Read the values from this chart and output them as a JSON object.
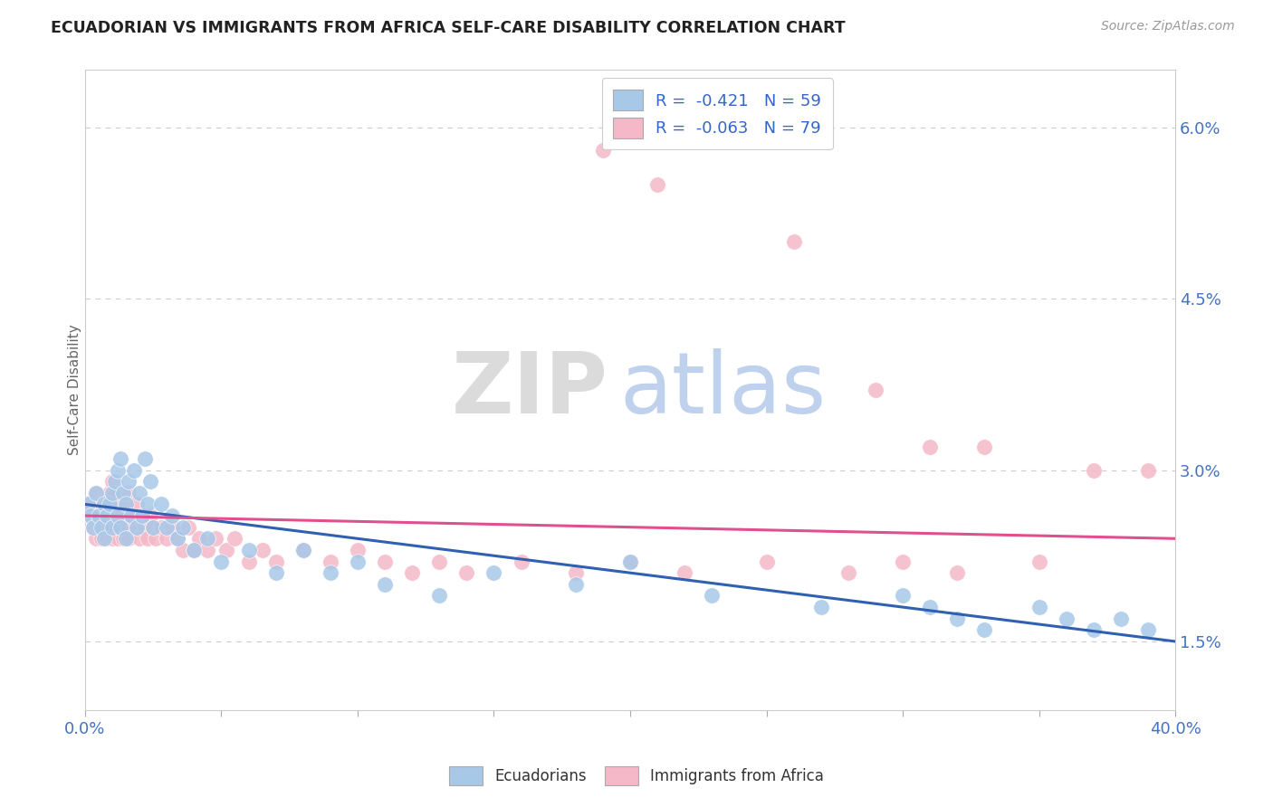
{
  "title": "ECUADORIAN VS IMMIGRANTS FROM AFRICA SELF-CARE DISABILITY CORRELATION CHART",
  "source": "Source: ZipAtlas.com",
  "ylabel": "Self-Care Disability",
  "xlim": [
    0.0,
    0.4
  ],
  "ylim": [
    0.009,
    0.065
  ],
  "ytick_vals": [
    0.015,
    0.03,
    0.045,
    0.06
  ],
  "ytick_labels": [
    "1.5%",
    "3.0%",
    "4.5%",
    "6.0%"
  ],
  "xtick_vals": [
    0.0,
    0.05,
    0.1,
    0.15,
    0.2,
    0.25,
    0.3,
    0.35,
    0.4
  ],
  "xtick_labels": [
    "0.0%",
    "",
    "",
    "",
    "",
    "",
    "",
    "",
    "40.0%"
  ],
  "blue_R": -0.421,
  "blue_N": 59,
  "pink_R": -0.063,
  "pink_N": 79,
  "blue_color": "#a8c8e8",
  "pink_color": "#f4b8c8",
  "blue_line_color": "#3060b0",
  "pink_line_color": "#e05090",
  "background_color": "#ffffff",
  "watermark_zip": "ZIP",
  "watermark_atlas": "atlas",
  "blue_line_start_y": 0.027,
  "blue_line_end_y": 0.015,
  "pink_line_start_y": 0.026,
  "pink_line_end_y": 0.024,
  "blue_x": [
    0.001,
    0.002,
    0.003,
    0.004,
    0.005,
    0.006,
    0.007,
    0.007,
    0.008,
    0.009,
    0.01,
    0.01,
    0.011,
    0.012,
    0.012,
    0.013,
    0.013,
    0.014,
    0.015,
    0.015,
    0.016,
    0.017,
    0.018,
    0.019,
    0.02,
    0.021,
    0.022,
    0.023,
    0.024,
    0.025,
    0.028,
    0.03,
    0.032,
    0.034,
    0.036,
    0.04,
    0.045,
    0.05,
    0.06,
    0.07,
    0.08,
    0.09,
    0.1,
    0.11,
    0.13,
    0.15,
    0.18,
    0.2,
    0.23,
    0.27,
    0.3,
    0.31,
    0.32,
    0.33,
    0.35,
    0.36,
    0.37,
    0.38,
    0.39
  ],
  "blue_y": [
    0.027,
    0.026,
    0.025,
    0.028,
    0.026,
    0.025,
    0.027,
    0.024,
    0.026,
    0.027,
    0.028,
    0.025,
    0.029,
    0.03,
    0.026,
    0.031,
    0.025,
    0.028,
    0.027,
    0.024,
    0.029,
    0.026,
    0.03,
    0.025,
    0.028,
    0.026,
    0.031,
    0.027,
    0.029,
    0.025,
    0.027,
    0.025,
    0.026,
    0.024,
    0.025,
    0.023,
    0.024,
    0.022,
    0.023,
    0.021,
    0.023,
    0.021,
    0.022,
    0.02,
    0.019,
    0.021,
    0.02,
    0.022,
    0.019,
    0.018,
    0.019,
    0.018,
    0.017,
    0.016,
    0.018,
    0.017,
    0.016,
    0.017,
    0.016
  ],
  "pink_x": [
    0.001,
    0.002,
    0.003,
    0.004,
    0.004,
    0.005,
    0.005,
    0.006,
    0.006,
    0.007,
    0.007,
    0.008,
    0.008,
    0.009,
    0.009,
    0.01,
    0.01,
    0.011,
    0.011,
    0.012,
    0.012,
    0.013,
    0.013,
    0.014,
    0.014,
    0.015,
    0.015,
    0.016,
    0.016,
    0.017,
    0.018,
    0.019,
    0.02,
    0.021,
    0.022,
    0.023,
    0.024,
    0.025,
    0.026,
    0.028,
    0.03,
    0.032,
    0.034,
    0.036,
    0.038,
    0.04,
    0.042,
    0.045,
    0.048,
    0.052,
    0.055,
    0.06,
    0.065,
    0.07,
    0.08,
    0.09,
    0.1,
    0.11,
    0.12,
    0.13,
    0.14,
    0.16,
    0.18,
    0.2,
    0.22,
    0.25,
    0.28,
    0.3,
    0.32,
    0.35,
    0.19,
    0.21,
    0.24,
    0.26,
    0.29,
    0.31,
    0.33,
    0.37,
    0.39
  ],
  "pink_y": [
    0.027,
    0.026,
    0.025,
    0.028,
    0.024,
    0.026,
    0.025,
    0.027,
    0.024,
    0.026,
    0.025,
    0.027,
    0.024,
    0.028,
    0.025,
    0.029,
    0.024,
    0.028,
    0.025,
    0.027,
    0.024,
    0.026,
    0.025,
    0.028,
    0.024,
    0.027,
    0.025,
    0.028,
    0.024,
    0.026,
    0.025,
    0.027,
    0.024,
    0.026,
    0.025,
    0.024,
    0.026,
    0.025,
    0.024,
    0.025,
    0.024,
    0.025,
    0.024,
    0.023,
    0.025,
    0.023,
    0.024,
    0.023,
    0.024,
    0.023,
    0.024,
    0.022,
    0.023,
    0.022,
    0.023,
    0.022,
    0.023,
    0.022,
    0.021,
    0.022,
    0.021,
    0.022,
    0.021,
    0.022,
    0.021,
    0.022,
    0.021,
    0.022,
    0.021,
    0.022,
    0.058,
    0.055,
    0.06,
    0.05,
    0.037,
    0.032,
    0.032,
    0.03,
    0.03
  ]
}
